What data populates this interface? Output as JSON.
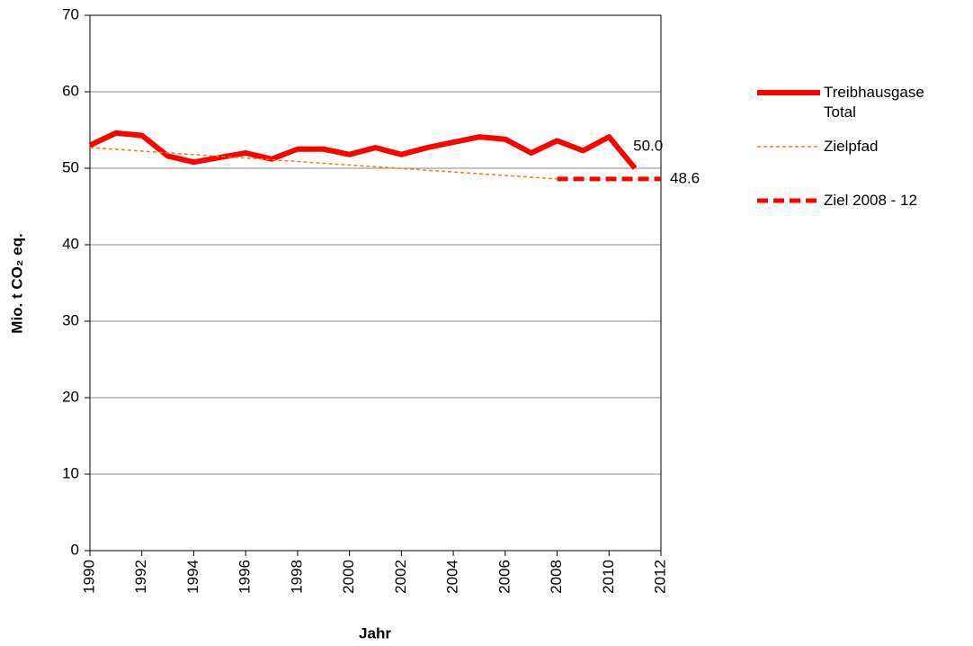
{
  "chart_data": {
    "type": "line",
    "x_label": "Jahr",
    "y_label": "Mio. t CO₂ eq.",
    "xlim": [
      1990,
      2012
    ],
    "xticks": [
      1990,
      1992,
      1994,
      1996,
      1998,
      2000,
      2002,
      2004,
      2006,
      2008,
      2010,
      2012
    ],
    "ylim": [
      0,
      70
    ],
    "yticks": [
      0,
      10,
      20,
      30,
      40,
      50,
      60,
      70
    ],
    "grid": true,
    "legend": "right",
    "series": [
      {
        "name": "Treibhausgase Total",
        "color": "#ff0000",
        "linestyle": "solid",
        "linewidth": 6,
        "x": [
          1990,
          1991,
          1992,
          1993,
          1994,
          1995,
          1996,
          1997,
          1998,
          1999,
          2000,
          2001,
          2002,
          2003,
          2004,
          2005,
          2006,
          2007,
          2008,
          2009,
          2010,
          2011
        ],
        "values": [
          53.0,
          54.6,
          54.3,
          51.6,
          50.8,
          51.4,
          52.0,
          51.2,
          52.5,
          52.5,
          51.8,
          52.7,
          51.8,
          52.7,
          53.4,
          54.1,
          53.8,
          52.0,
          53.6,
          52.3,
          54.1,
          50.0
        ],
        "value_labels": [
          null,
          null,
          null,
          null,
          null,
          null,
          null,
          null,
          null,
          null,
          null,
          null,
          null,
          null,
          null,
          null,
          null,
          null,
          null,
          null,
          null,
          "50.0"
        ]
      },
      {
        "name": "Zielpfad",
        "color": "#f07d14",
        "linestyle": "dashed",
        "linewidth": 1.5,
        "x": [
          1990,
          2008
        ],
        "values": [
          52.7,
          48.6
        ]
      },
      {
        "name": "Ziel 2008 - 12",
        "color": "#ff0000",
        "linestyle": "dashed",
        "linewidth": 5,
        "x": [
          2008,
          2012
        ],
        "values": [
          48.6,
          48.6
        ],
        "value_labels": [
          null,
          "48.6"
        ]
      }
    ]
  }
}
